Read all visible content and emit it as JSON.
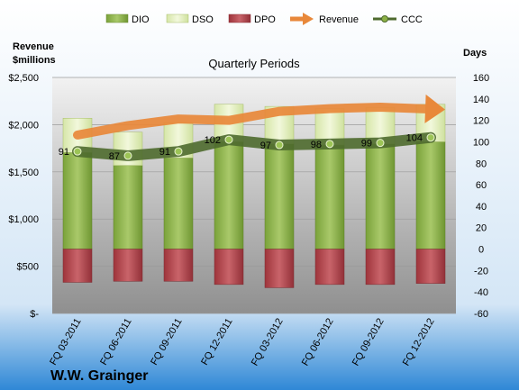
{
  "company": "W.W. Grainger",
  "chart_data": {
    "type": "bar",
    "subtitle": "Quarterly Periods",
    "left_axis": {
      "title_line1": "Revenue",
      "title_line2": "$millions",
      "range": [
        0,
        2500
      ],
      "tick_labels": [
        "$-",
        "$500",
        "$1,000",
        "$1,500",
        "$2,000",
        "$2,500"
      ],
      "tick_values": [
        0,
        500,
        1000,
        1500,
        2000,
        2500
      ]
    },
    "right_axis": {
      "title": "Days",
      "range": [
        -60,
        160
      ],
      "ticks": [
        -60,
        -40,
        -20,
        0,
        20,
        40,
        60,
        80,
        100,
        120,
        140,
        160
      ]
    },
    "categories": [
      "FQ 03-2011",
      "FQ 06-2011",
      "FQ 09-2011",
      "FQ 12-2011",
      "FQ 03-2012",
      "FQ 06-2012",
      "FQ 09-2012",
      "FQ 12-2012"
    ],
    "series": [
      {
        "name": "DIO",
        "axis": "right",
        "stack": "positive",
        "color": "#8cb146",
        "values": [
          90,
          78,
          85,
          100,
          98,
          97,
          98,
          100
        ]
      },
      {
        "name": "DSO",
        "axis": "right",
        "stack": "positive",
        "color": "#e3efbe",
        "values": [
          32,
          31,
          33,
          35,
          35,
          34,
          34,
          35
        ]
      },
      {
        "name": "DPO",
        "axis": "right",
        "stack": "negative",
        "color": "#b4434a",
        "values": [
          -31,
          -30,
          -30,
          -33,
          -36,
          -33,
          -33,
          -32
        ]
      },
      {
        "name": "Revenue",
        "axis": "left",
        "type": "line",
        "color": "#e8883a",
        "values": [
          1890,
          1990,
          2060,
          2045,
          2140,
          2170,
          2185,
          2150
        ]
      },
      {
        "name": "CCC",
        "axis": "right",
        "type": "line",
        "color": "#4e6a2e",
        "values": [
          91,
          87,
          91,
          102,
          97,
          98,
          99,
          104
        ]
      }
    ],
    "ccc_labels": [
      "91",
      "87",
      "91",
      "102",
      "97",
      "98",
      "99",
      "104"
    ],
    "legend": {
      "position": "top",
      "items": [
        "DIO",
        "DSO",
        "DPO",
        "Revenue",
        "CCC"
      ]
    }
  }
}
